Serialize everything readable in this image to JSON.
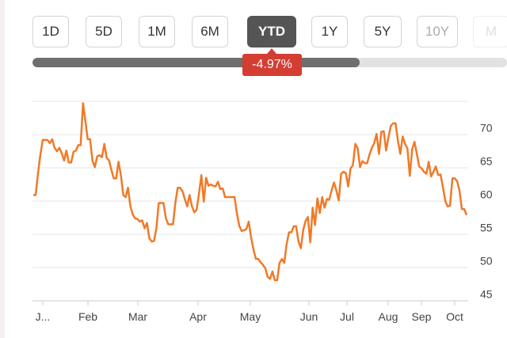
{
  "range_tabs": [
    {
      "label": "1D",
      "state": "normal"
    },
    {
      "label": "5D",
      "state": "normal"
    },
    {
      "label": "1M",
      "state": "normal"
    },
    {
      "label": "6M",
      "state": "normal"
    },
    {
      "label": "YTD",
      "state": "active"
    },
    {
      "label": "1Y",
      "state": "normal"
    },
    {
      "label": "5Y",
      "state": "normal"
    },
    {
      "label": "10Y",
      "state": "dim"
    },
    {
      "label": "M",
      "state": "fade"
    }
  ],
  "performance": {
    "change_label": "-4.97%",
    "progress_fraction": 0.69
  },
  "colors": {
    "line": "#f07a28",
    "badge": "#d43d31",
    "active_tab": "#555555"
  },
  "chart_data": {
    "type": "line",
    "title": "",
    "xlabel": "",
    "ylabel": "",
    "x_tick_labels": [
      "J...",
      "Feb",
      "Mar",
      "Apr",
      "May",
      "Jun",
      "Jul",
      "Aug",
      "Sep",
      "Oct"
    ],
    "y_tick_labels": [
      "70",
      "65",
      "60",
      "55",
      "50",
      "45"
    ],
    "ylim": [
      44,
      74
    ],
    "grid": true,
    "series": [
      {
        "values": [
          59.9,
          59.9,
          63.2,
          66,
          68.2,
          68.2,
          68.2,
          67.7,
          68.3,
          67,
          66.5,
          67,
          66.2,
          65.1,
          66.6,
          64.8,
          64.8,
          66.4,
          66.6,
          67.4,
          67.4,
          73.7,
          71,
          68.3,
          68.3,
          65.1,
          64.1,
          65.7,
          65.9,
          65.6,
          67.6,
          65.5,
          65.1,
          63.7,
          62.4,
          62.4,
          64.9,
          62.9,
          59.9,
          59.6,
          61,
          58.2,
          57,
          56.4,
          56.3,
          55.9,
          56.1,
          54.9,
          55.7,
          53.4,
          52.9,
          53,
          54.9,
          58.7,
          58.7,
          58.7,
          56.4,
          55.5,
          55.5,
          55.5,
          58.7,
          61,
          61,
          60.5,
          59.3,
          58.2,
          59.9,
          58.2,
          57.3,
          57.7,
          60.1,
          62.9,
          58.9,
          62.5,
          61.3,
          61.5,
          61.3,
          61.2,
          61.9,
          60.8,
          60.9,
          59.6,
          59.6,
          59.6,
          59.6,
          59.6,
          57.1,
          55.3,
          54.5,
          54.6,
          54.8,
          55.9,
          53.5,
          51.7,
          50.3,
          50.3,
          49.8,
          49.4,
          48.9,
          47.6,
          47.3,
          48.4,
          47.1,
          47.1,
          49.7,
          50.3,
          49.7,
          52.5,
          54.3,
          54.3,
          55.2,
          55.2,
          52.9,
          51.9,
          54.7,
          56,
          56.6,
          52.8,
          58,
          55.4,
          59.4,
          57.2,
          59.6,
          58,
          59.3,
          59.2,
          60.6,
          61.8,
          60.6,
          59.1,
          63.1,
          63.4,
          63.2,
          61.2,
          63.9,
          64.4,
          67.6,
          66.9,
          64.1,
          65,
          64.7,
          64.7,
          66,
          67,
          67.7,
          69.1,
          66.1,
          69.4,
          69.5,
          66.6,
          68.6,
          70.3,
          70.7,
          70.7,
          68.1,
          66.1,
          68.7,
          67.6,
          66.9,
          62.8,
          66.8,
          67.9,
          66.1,
          64.2,
          63.9,
          63.4,
          63.1,
          64.9,
          62.7,
          63.4,
          64.2,
          62.9,
          63,
          61.1,
          59,
          58.2,
          58.3,
          62.4,
          62.4,
          62,
          60.6,
          57.8,
          57.8,
          56.9
        ]
      }
    ]
  }
}
